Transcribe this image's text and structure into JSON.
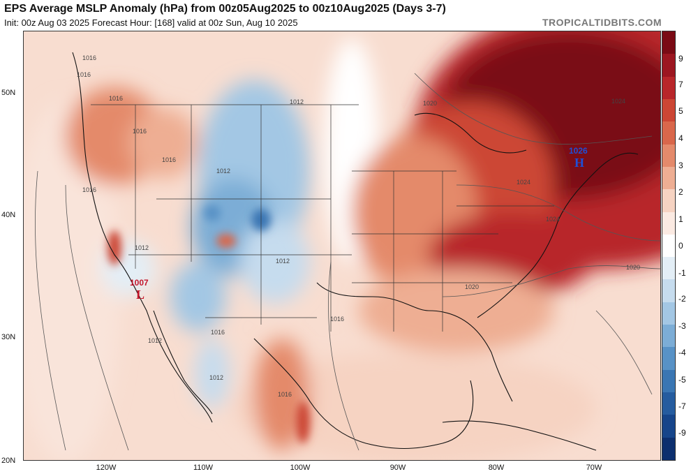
{
  "header": {
    "title": "EPS Average MSLP Anomaly (hPa) from 00z05Aug2025 to 00z10Aug2025 (Days 3-7)",
    "subtitle": "Init: 00z Aug 03 2025   Forecast Hour: [168]   valid at 00z Sun, Aug 10 2025",
    "brand": "TROPICALTIDBITS.COM"
  },
  "axes": {
    "lat_labels": [
      "50N",
      "40N",
      "30N",
      "20N"
    ],
    "lon_labels": [
      "120W",
      "110W",
      "100W",
      "90W",
      "80W",
      "70W"
    ]
  },
  "colorbar": {
    "labels": [
      "9",
      "7",
      "5",
      "4",
      "3",
      "2",
      "1",
      "0",
      "-1",
      "-2",
      "-3",
      "-4",
      "-5",
      "-7",
      "-9"
    ],
    "colors": [
      "#7a0a14",
      "#9c1620",
      "#b8262a",
      "#cc4634",
      "#d9674b",
      "#e48a6b",
      "#eeae93",
      "#f6d3c2",
      "#fbeae2",
      "#ffffff",
      "#e3eef6",
      "#c6dcee",
      "#a3c7e4",
      "#7cadd6",
      "#5892c6",
      "#3a76b3",
      "#255c9f",
      "#16458a",
      "#0c2f6e"
    ]
  },
  "pressure_centers": {
    "high": {
      "value": "1026",
      "letter": "H",
      "color": "#1f4fd6"
    },
    "low": {
      "value": "1007",
      "letter": "L",
      "color": "#c4152a"
    }
  },
  "isobars": [
    "1016",
    "1016",
    "1016",
    "1016",
    "1016",
    "1012",
    "1012",
    "1012",
    "1012",
    "1016",
    "1016",
    "1016",
    "1012",
    "1012",
    "1016",
    "1020",
    "1024",
    "1024",
    "1024",
    "1020",
    "1020"
  ]
}
